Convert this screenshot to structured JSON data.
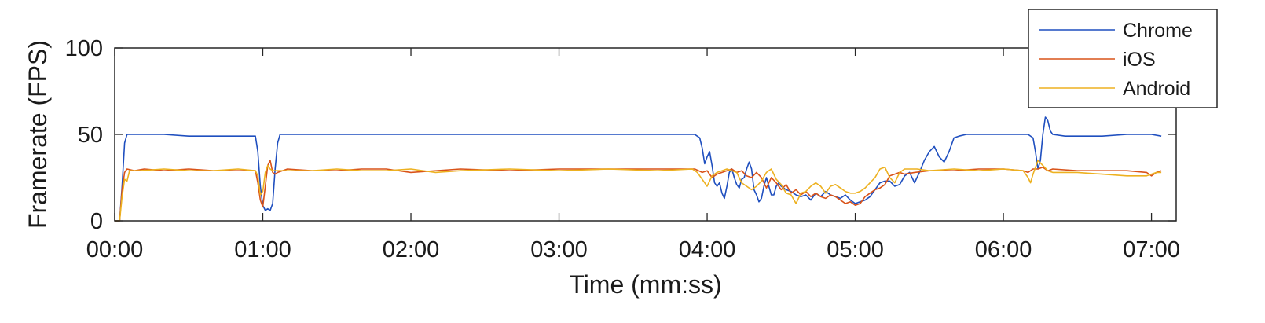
{
  "chart_data": {
    "type": "line",
    "title": "",
    "xlabel": "Time (mm:ss)",
    "ylabel": "Framerate (FPS)",
    "xlim": [
      0,
      430
    ],
    "ylim": [
      0,
      100
    ],
    "x_ticks": [
      0,
      60,
      120,
      180,
      240,
      300,
      360,
      420
    ],
    "x_tick_labels": [
      "00:00",
      "01:00",
      "02:00",
      "03:00",
      "04:00",
      "05:00",
      "06:00",
      "07:00"
    ],
    "y_ticks": [
      0,
      50,
      100
    ],
    "y_tick_labels": [
      "0",
      "50",
      "100"
    ],
    "grid": false,
    "legend_position": "top-right",
    "series": [
      {
        "name": "Chrome",
        "color": "#1f4fbf",
        "points": [
          [
            0,
            0
          ],
          [
            2,
            0
          ],
          [
            3,
            20
          ],
          [
            4,
            45
          ],
          [
            5,
            50
          ],
          [
            10,
            50
          ],
          [
            20,
            50
          ],
          [
            30,
            49
          ],
          [
            40,
            49
          ],
          [
            50,
            49
          ],
          [
            57,
            49
          ],
          [
            58,
            40
          ],
          [
            59,
            20
          ],
          [
            60,
            9
          ],
          [
            61,
            6
          ],
          [
            62,
            7
          ],
          [
            63,
            6
          ],
          [
            64,
            10
          ],
          [
            65,
            30
          ],
          [
            66,
            45
          ],
          [
            67,
            50
          ],
          [
            80,
            50
          ],
          [
            100,
            50
          ],
          [
            120,
            50
          ],
          [
            140,
            50
          ],
          [
            160,
            50
          ],
          [
            180,
            50
          ],
          [
            200,
            50
          ],
          [
            220,
            50
          ],
          [
            235,
            50
          ],
          [
            237,
            48
          ],
          [
            238,
            42
          ],
          [
            239,
            33
          ],
          [
            240,
            37
          ],
          [
            241,
            40
          ],
          [
            242,
            32
          ],
          [
            243,
            22
          ],
          [
            244,
            20
          ],
          [
            245,
            22
          ],
          [
            246,
            16
          ],
          [
            247,
            13
          ],
          [
            248,
            20
          ],
          [
            249,
            28
          ],
          [
            250,
            30
          ],
          [
            251,
            25
          ],
          [
            252,
            21
          ],
          [
            253,
            19
          ],
          [
            254,
            24
          ],
          [
            255,
            25
          ],
          [
            256,
            30
          ],
          [
            257,
            34
          ],
          [
            258,
            30
          ],
          [
            259,
            18
          ],
          [
            260,
            15
          ],
          [
            261,
            11
          ],
          [
            262,
            13
          ],
          [
            263,
            20
          ],
          [
            264,
            25
          ],
          [
            265,
            20
          ],
          [
            266,
            15
          ],
          [
            267,
            15
          ],
          [
            268,
            20
          ],
          [
            269,
            22
          ],
          [
            270,
            20
          ],
          [
            272,
            18
          ],
          [
            274,
            17
          ],
          [
            276,
            15
          ],
          [
            278,
            14
          ],
          [
            280,
            15
          ],
          [
            282,
            12
          ],
          [
            284,
            16
          ],
          [
            286,
            14
          ],
          [
            288,
            17
          ],
          [
            290,
            15
          ],
          [
            292,
            14
          ],
          [
            294,
            13
          ],
          [
            296,
            15
          ],
          [
            298,
            12
          ],
          [
            300,
            10
          ],
          [
            302,
            11
          ],
          [
            304,
            12
          ],
          [
            306,
            14
          ],
          [
            308,
            18
          ],
          [
            310,
            22
          ],
          [
            312,
            23
          ],
          [
            314,
            23
          ],
          [
            316,
            20
          ],
          [
            318,
            21
          ],
          [
            320,
            26
          ],
          [
            322,
            28
          ],
          [
            324,
            22
          ],
          [
            326,
            28
          ],
          [
            328,
            35
          ],
          [
            330,
            40
          ],
          [
            332,
            43
          ],
          [
            334,
            37
          ],
          [
            336,
            34
          ],
          [
            338,
            40
          ],
          [
            340,
            48
          ],
          [
            342,
            49
          ],
          [
            345,
            50
          ],
          [
            360,
            50
          ],
          [
            370,
            50
          ],
          [
            372,
            48
          ],
          [
            373,
            40
          ],
          [
            374,
            30
          ],
          [
            375,
            35
          ],
          [
            376,
            50
          ],
          [
            377,
            60
          ],
          [
            378,
            58
          ],
          [
            379,
            52
          ],
          [
            380,
            50
          ],
          [
            385,
            49
          ],
          [
            400,
            49
          ],
          [
            410,
            50
          ],
          [
            420,
            50
          ],
          [
            424,
            49
          ]
        ]
      },
      {
        "name": "iOS",
        "color": "#d95319",
        "points": [
          [
            0,
            0
          ],
          [
            2,
            0
          ],
          [
            3,
            18
          ],
          [
            4,
            28
          ],
          [
            5,
            30
          ],
          [
            8,
            29
          ],
          [
            12,
            30
          ],
          [
            20,
            29
          ],
          [
            30,
            30
          ],
          [
            40,
            29
          ],
          [
            50,
            29
          ],
          [
            57,
            29
          ],
          [
            58,
            22
          ],
          [
            59,
            12
          ],
          [
            60,
            8
          ],
          [
            61,
            20
          ],
          [
            62,
            32
          ],
          [
            63,
            35
          ],
          [
            64,
            28
          ],
          [
            65,
            27
          ],
          [
            66,
            28
          ],
          [
            70,
            30
          ],
          [
            80,
            29
          ],
          [
            90,
            29
          ],
          [
            100,
            30
          ],
          [
            110,
            30
          ],
          [
            120,
            28
          ],
          [
            140,
            30
          ],
          [
            160,
            29
          ],
          [
            180,
            30
          ],
          [
            200,
            30
          ],
          [
            220,
            30
          ],
          [
            235,
            30
          ],
          [
            238,
            28
          ],
          [
            240,
            29
          ],
          [
            242,
            25
          ],
          [
            244,
            27
          ],
          [
            246,
            28
          ],
          [
            248,
            29
          ],
          [
            250,
            30
          ],
          [
            252,
            28
          ],
          [
            254,
            29
          ],
          [
            256,
            26
          ],
          [
            258,
            25
          ],
          [
            260,
            28
          ],
          [
            262,
            25
          ],
          [
            264,
            19
          ],
          [
            266,
            25
          ],
          [
            268,
            22
          ],
          [
            270,
            18
          ],
          [
            272,
            21
          ],
          [
            274,
            16
          ],
          [
            276,
            18
          ],
          [
            278,
            15
          ],
          [
            280,
            17
          ],
          [
            282,
            14
          ],
          [
            284,
            16
          ],
          [
            286,
            14
          ],
          [
            288,
            13
          ],
          [
            290,
            15
          ],
          [
            292,
            14
          ],
          [
            294,
            12
          ],
          [
            296,
            10
          ],
          [
            298,
            11
          ],
          [
            300,
            9
          ],
          [
            302,
            10
          ],
          [
            304,
            14
          ],
          [
            306,
            16
          ],
          [
            308,
            18
          ],
          [
            310,
            19
          ],
          [
            312,
            21
          ],
          [
            314,
            26
          ],
          [
            316,
            27
          ],
          [
            318,
            28
          ],
          [
            320,
            27
          ],
          [
            324,
            28
          ],
          [
            330,
            29
          ],
          [
            340,
            29
          ],
          [
            350,
            30
          ],
          [
            360,
            30
          ],
          [
            368,
            29
          ],
          [
            370,
            28
          ],
          [
            372,
            30
          ],
          [
            374,
            30
          ],
          [
            376,
            31
          ],
          [
            378,
            29
          ],
          [
            380,
            30
          ],
          [
            390,
            29
          ],
          [
            400,
            29
          ],
          [
            410,
            29
          ],
          [
            418,
            28
          ],
          [
            420,
            26
          ],
          [
            422,
            28
          ],
          [
            424,
            29
          ]
        ]
      },
      {
        "name": "Android",
        "color": "#edb120",
        "points": [
          [
            0,
            0
          ],
          [
            2,
            0
          ],
          [
            3,
            14
          ],
          [
            4,
            24
          ],
          [
            5,
            23
          ],
          [
            6,
            29
          ],
          [
            10,
            29
          ],
          [
            20,
            30
          ],
          [
            30,
            29
          ],
          [
            40,
            29
          ],
          [
            50,
            30
          ],
          [
            57,
            29
          ],
          [
            58,
            26
          ],
          [
            59,
            15
          ],
          [
            60,
            17
          ],
          [
            61,
            28
          ],
          [
            62,
            32
          ],
          [
            63,
            30
          ],
          [
            64,
            29
          ],
          [
            70,
            29
          ],
          [
            80,
            29
          ],
          [
            90,
            30
          ],
          [
            100,
            29
          ],
          [
            110,
            29
          ],
          [
            120,
            30
          ],
          [
            130,
            28
          ],
          [
            140,
            29
          ],
          [
            160,
            30
          ],
          [
            180,
            29
          ],
          [
            200,
            30
          ],
          [
            220,
            29
          ],
          [
            234,
            30
          ],
          [
            236,
            28
          ],
          [
            238,
            24
          ],
          [
            240,
            20
          ],
          [
            242,
            26
          ],
          [
            244,
            28
          ],
          [
            246,
            29
          ],
          [
            248,
            30
          ],
          [
            250,
            29
          ],
          [
            252,
            28
          ],
          [
            254,
            22
          ],
          [
            256,
            20
          ],
          [
            258,
            18
          ],
          [
            260,
            20
          ],
          [
            262,
            23
          ],
          [
            264,
            28
          ],
          [
            266,
            30
          ],
          [
            268,
            24
          ],
          [
            270,
            21
          ],
          [
            272,
            16
          ],
          [
            274,
            15
          ],
          [
            276,
            10
          ],
          [
            278,
            16
          ],
          [
            280,
            17
          ],
          [
            282,
            20
          ],
          [
            284,
            22
          ],
          [
            286,
            20
          ],
          [
            288,
            16
          ],
          [
            290,
            20
          ],
          [
            292,
            21
          ],
          [
            294,
            19
          ],
          [
            296,
            17
          ],
          [
            298,
            16
          ],
          [
            300,
            16
          ],
          [
            302,
            17
          ],
          [
            304,
            19
          ],
          [
            306,
            22
          ],
          [
            308,
            25
          ],
          [
            310,
            30
          ],
          [
            312,
            31
          ],
          [
            314,
            25
          ],
          [
            316,
            22
          ],
          [
            318,
            28
          ],
          [
            320,
            30
          ],
          [
            325,
            30
          ],
          [
            330,
            29
          ],
          [
            340,
            30
          ],
          [
            350,
            29
          ],
          [
            360,
            30
          ],
          [
            368,
            29
          ],
          [
            370,
            25
          ],
          [
            371,
            22
          ],
          [
            372,
            27
          ],
          [
            374,
            35
          ],
          [
            376,
            32
          ],
          [
            378,
            29
          ],
          [
            380,
            28
          ],
          [
            390,
            28
          ],
          [
            400,
            27
          ],
          [
            410,
            26
          ],
          [
            418,
            26
          ],
          [
            420,
            27
          ],
          [
            422,
            28
          ],
          [
            424,
            28
          ]
        ]
      }
    ]
  }
}
